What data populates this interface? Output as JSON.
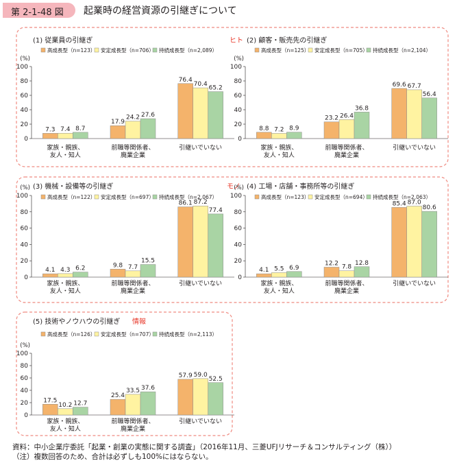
{
  "figure": {
    "number": "第 2-1-48 図",
    "title": "起業時の経営資源の引継ぎについて"
  },
  "groups": [
    {
      "label": "ヒト",
      "color": "#e8382a"
    },
    {
      "label": "モノ",
      "color": "#e8382a"
    },
    {
      "label": "情報",
      "color": "#e8382a"
    }
  ],
  "colors": {
    "series": [
      "#f4b36b",
      "#fff3a1",
      "#a9d4a4"
    ],
    "frame": "#ef8a80"
  },
  "chart_data": [
    {
      "type": "bar",
      "title": "(1) 従業員の引継ぎ",
      "ylabel": "(%)",
      "ylim": [
        0,
        100
      ],
      "yticks": [
        0,
        20,
        40,
        60,
        80,
        100
      ],
      "categories": [
        [
          "家族・親族、",
          "友人・知人"
        ],
        [
          "前職等関係者、",
          "廃業企業"
        ],
        [
          "引継いでいない"
        ]
      ],
      "series": [
        {
          "name": "高成長型（n=123）",
          "values": [
            7.3,
            17.9,
            76.4
          ]
        },
        {
          "name": "安定成長型（n=706）",
          "values": [
            7.4,
            24.2,
            70.4
          ]
        },
        {
          "name": "持続成長型（n=2,089）",
          "values": [
            8.7,
            27.6,
            65.2
          ]
        }
      ]
    },
    {
      "type": "bar",
      "title": "(2) 顧客・販売先の引継ぎ",
      "ylabel": "(%)",
      "ylim": [
        0,
        100
      ],
      "yticks": [
        0,
        20,
        40,
        60,
        80,
        100
      ],
      "categories": [
        [
          "家族・親族、",
          "友人・知人"
        ],
        [
          "前職等関係者、",
          "廃業企業"
        ],
        [
          "引継いでいない"
        ]
      ],
      "series": [
        {
          "name": "高成長型（n=125）",
          "values": [
            8.8,
            23.2,
            69.6
          ]
        },
        {
          "name": "安定成長型（n=705）",
          "values": [
            7.2,
            26.4,
            67.7
          ]
        },
        {
          "name": "持続成長型（n=2,104）",
          "values": [
            8.9,
            36.8,
            56.4
          ]
        }
      ]
    },
    {
      "type": "bar",
      "title": "(3) 機械・設備等の引継ぎ",
      "ylabel": "(%)",
      "ylim": [
        0,
        100
      ],
      "yticks": [
        0,
        20,
        40,
        60,
        80,
        100
      ],
      "categories": [
        [
          "家族・親族、",
          "友人・知人"
        ],
        [
          "前職等関係者、",
          "廃業企業"
        ],
        [
          "引継いでいない"
        ]
      ],
      "series": [
        {
          "name": "高成長型（n=122）",
          "values": [
            4.1,
            9.8,
            86.1
          ]
        },
        {
          "name": "安定成長型（n=697）",
          "values": [
            4.3,
            7.7,
            87.2
          ]
        },
        {
          "name": "持続成長型（n=2,067）",
          "values": [
            6.2,
            15.5,
            77.4
          ]
        }
      ]
    },
    {
      "type": "bar",
      "title": "(4) 工場・店舗・事務所等の引継ぎ",
      "ylabel": "(%)",
      "ylim": [
        0,
        100
      ],
      "yticks": [
        0,
        20,
        40,
        60,
        80,
        100
      ],
      "categories": [
        [
          "家族・親族、",
          "友人・知人"
        ],
        [
          "前職等関係者、",
          "廃業企業"
        ],
        [
          "引継いでいない"
        ]
      ],
      "series": [
        {
          "name": "高成長型（n=123）",
          "values": [
            4.1,
            12.2,
            85.4
          ]
        },
        {
          "name": "安定成長型（n=694）",
          "values": [
            5.5,
            7.8,
            87.0
          ]
        },
        {
          "name": "持続成長型（n=2,063）",
          "values": [
            6.9,
            12.8,
            80.6
          ]
        }
      ]
    },
    {
      "type": "bar",
      "title": "(5) 技術やノウハウの引継ぎ",
      "ylabel": "(%)",
      "ylim": [
        0,
        100
      ],
      "yticks": [
        0,
        20,
        40,
        60,
        80,
        100
      ],
      "categories": [
        [
          "家族・親族、",
          "友人・知人"
        ],
        [
          "前職等関係者、",
          "廃業企業"
        ],
        [
          "引継いでいない"
        ]
      ],
      "series": [
        {
          "name": "高成長型（n=126）",
          "values": [
            17.5,
            25.4,
            57.9
          ]
        },
        {
          "name": "安定成長型（n=707）",
          "values": [
            10.2,
            33.5,
            59.0
          ]
        },
        {
          "name": "持続成長型（n=2,113）",
          "values": [
            12.7,
            37.6,
            52.5
          ]
        }
      ]
    }
  ],
  "footnotes": [
    "資料：中小企業庁委託「起業・創業の実態に関する調査」（2016年11月、三菱UFJリサーチ＆コンサルティング（株））",
    "（注）複数回答のため、合計は必ずしも100%にはならない。"
  ]
}
